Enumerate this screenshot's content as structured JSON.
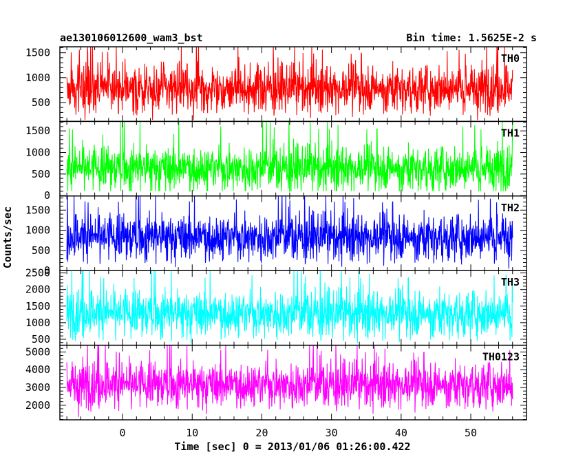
{
  "header": {
    "left": "ae130106012600_wam3_bst",
    "right": "Bin time: 1.5625E-2 s"
  },
  "chart_data": {
    "type": "line",
    "title": "ae130106012600_wam3_bst",
    "subtitle": "Bin time: 1.5625E-2 s",
    "xlabel": "Time [sec] 0 = 2013/01/06 01:26:00.422",
    "ylabel": "Counts/sec",
    "xlim": [
      -9,
      58
    ],
    "xticks": [
      0,
      10,
      20,
      30,
      40,
      50
    ],
    "data_x_range": [
      -8,
      56
    ],
    "grid": false,
    "panels": [
      {
        "name": "TH0",
        "color": "#ff0000",
        "ylim": [
          120,
          1620
        ],
        "yticks": [
          500,
          1000,
          1500
        ],
        "y_mean": 800,
        "y_min": 150,
        "y_max": 1650
      },
      {
        "name": "TH1",
        "color": "#00ff00",
        "ylim": [
          -10,
          1720
        ],
        "yticks": [
          0,
          500,
          1000,
          1500
        ],
        "y_mean": 650,
        "y_min": 100,
        "y_max": 1750
      },
      {
        "name": "TH2",
        "color": "#0000ff",
        "ylim": [
          0,
          1850
        ],
        "yticks": [
          0,
          500,
          1000,
          1500
        ],
        "y_mean": 850,
        "y_min": 50,
        "y_max": 1900
      },
      {
        "name": "TH3",
        "color": "#00ffff",
        "ylim": [
          320,
          2570
        ],
        "yticks": [
          500,
          1000,
          1500,
          2000,
          2500
        ],
        "y_mean": 1300,
        "y_min": 350,
        "y_max": 2600
      },
      {
        "name": "TH0123",
        "color": "#ff00ff",
        "ylim": [
          1180,
          5380
        ],
        "yticks": [
          2000,
          3000,
          4000,
          5000
        ],
        "y_mean": 3200,
        "y_min": 1300,
        "y_max": 5400
      }
    ]
  }
}
